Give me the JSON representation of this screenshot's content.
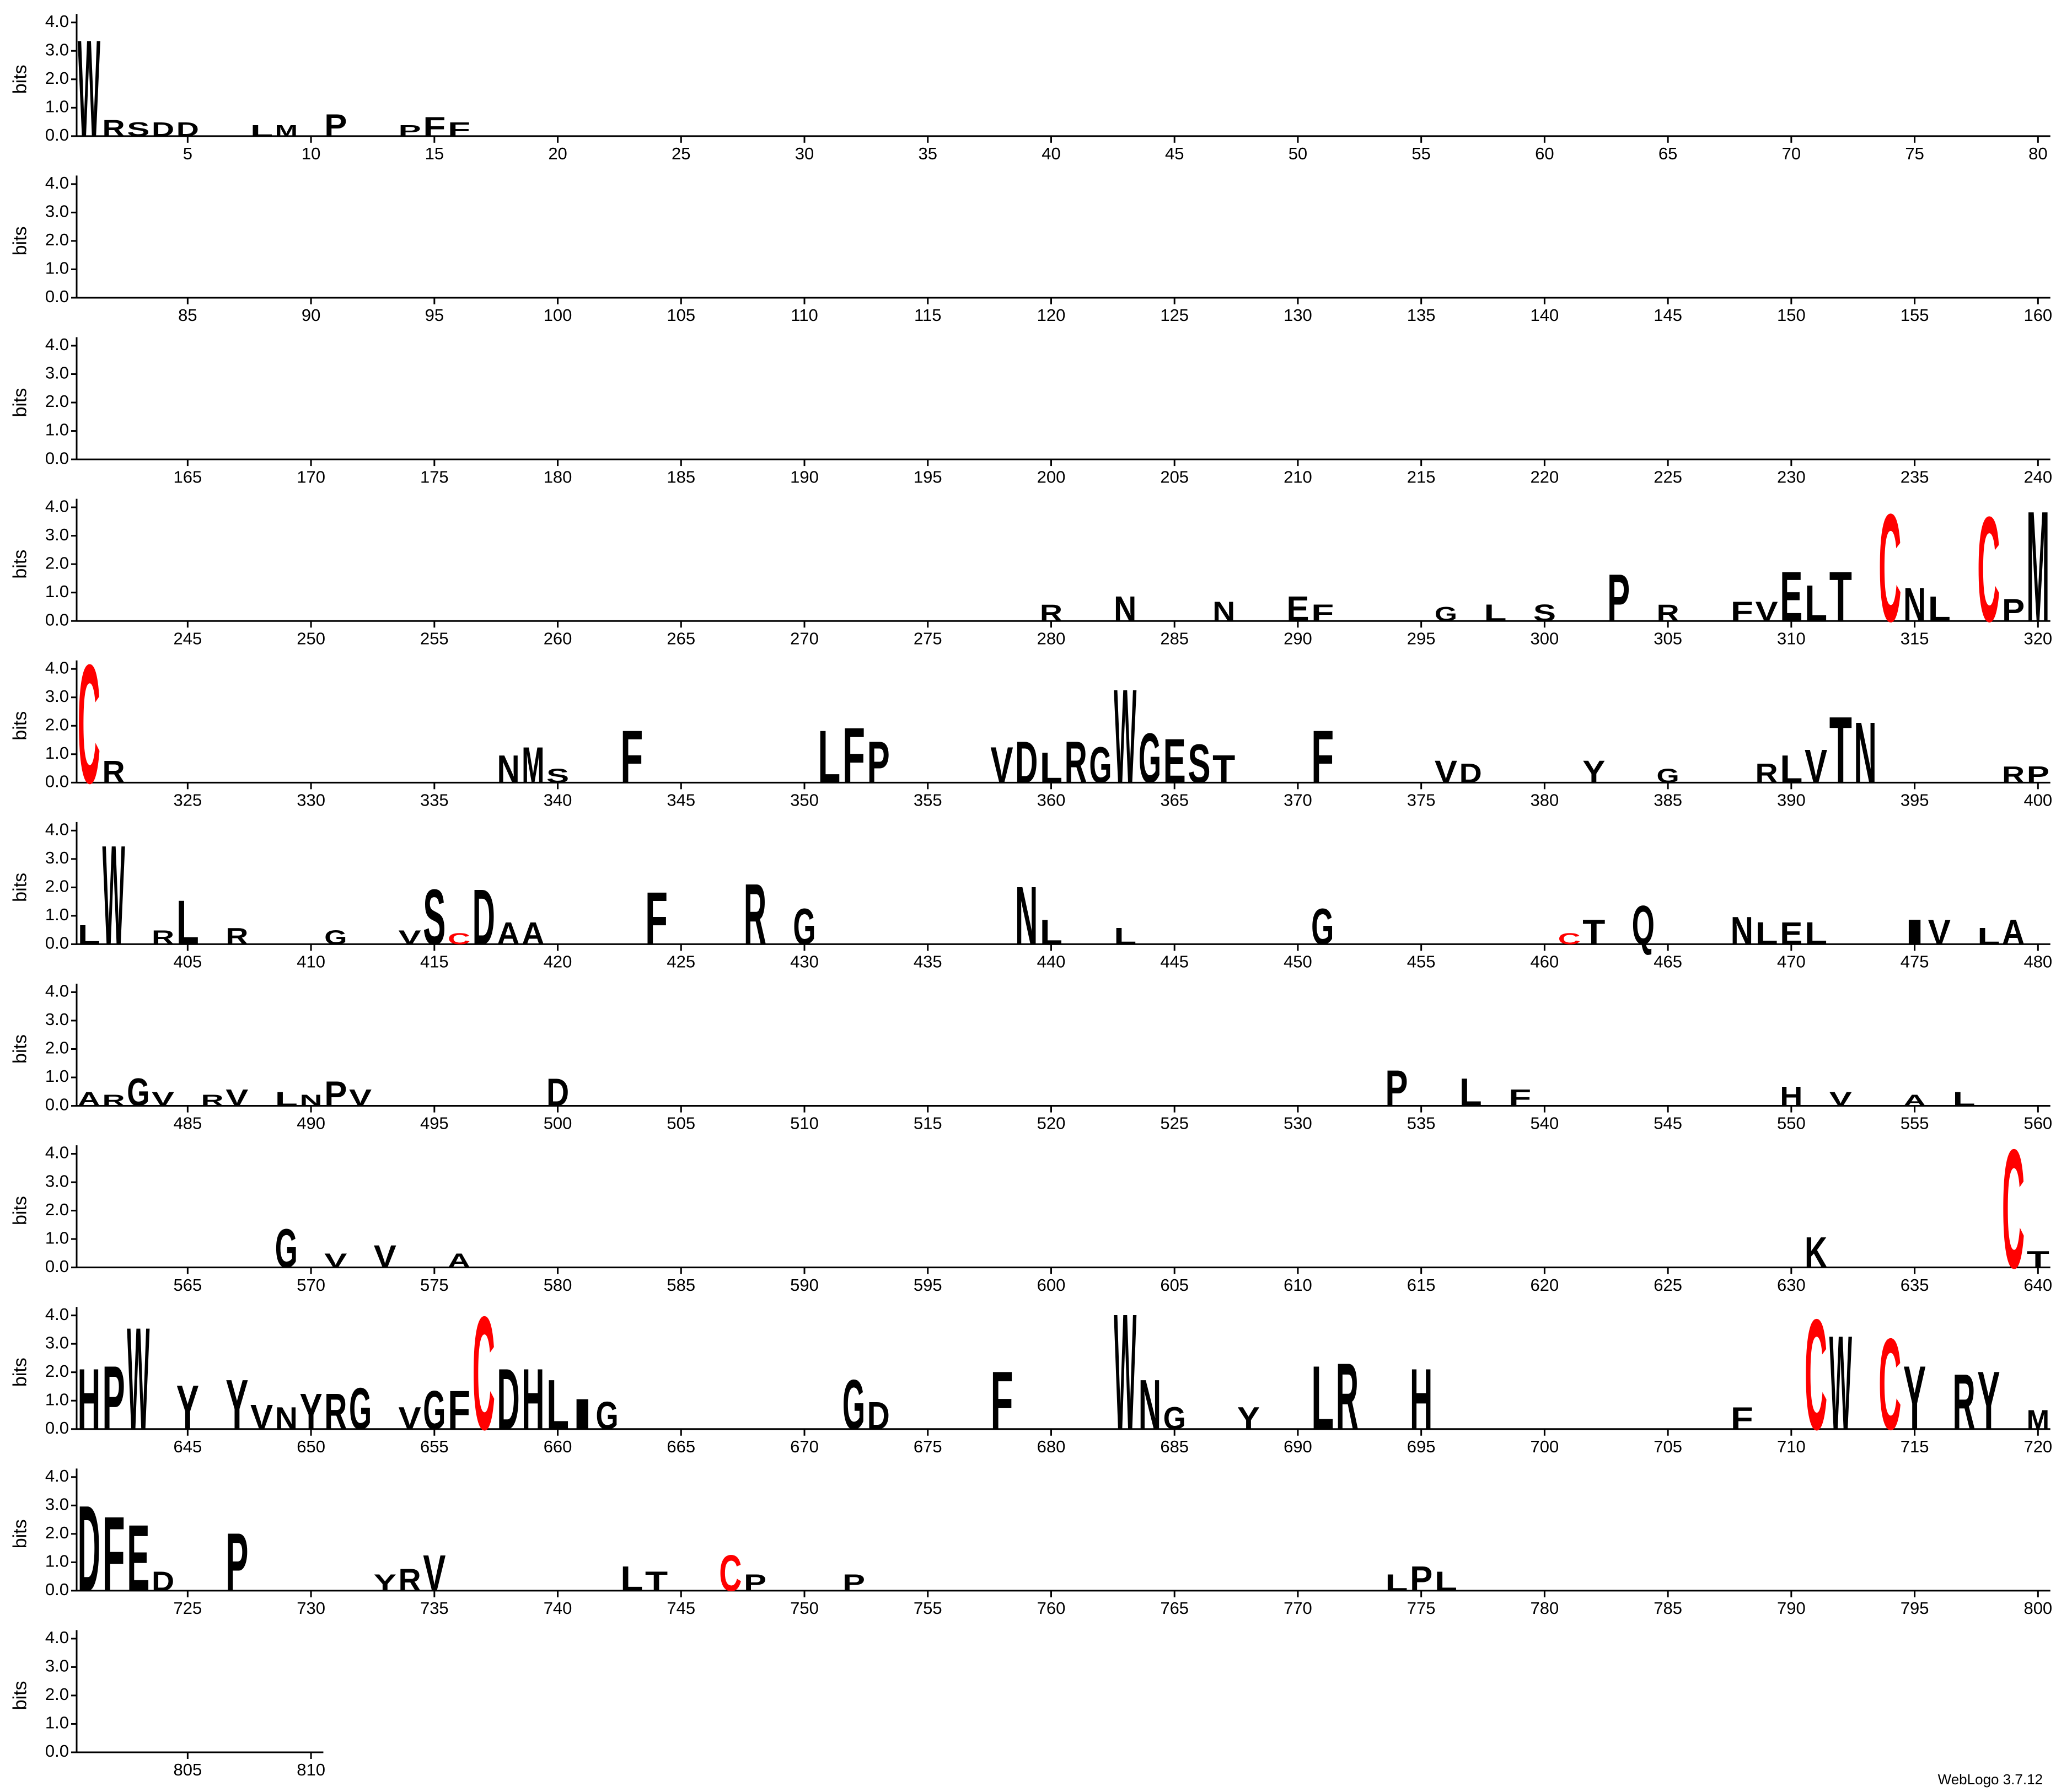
{
  "chart_data": {
    "type": "logo",
    "y_label": "bits",
    "footer": "WebLogo 3.7.12",
    "xlim": [
      1,
      810
    ],
    "ylim": [
      0,
      4.3
    ],
    "yticks": [
      {
        "value": 0,
        "label": "0.0"
      },
      {
        "value": 1,
        "label": "1.0"
      },
      {
        "value": 2,
        "label": "2.0"
      },
      {
        "value": 3,
        "label": "3.0"
      },
      {
        "value": 4,
        "label": "4.0"
      }
    ],
    "xticks": [
      5,
      10,
      15,
      20,
      25,
      30,
      35,
      40,
      45,
      50,
      55,
      60,
      65,
      70,
      75,
      80,
      85,
      90,
      95,
      100,
      105,
      110,
      115,
      120,
      125,
      130,
      135,
      140,
      145,
      150,
      155,
      160,
      165,
      170,
      175,
      180,
      185,
      190,
      195,
      200,
      205,
      210,
      215,
      220,
      225,
      230,
      235,
      240,
      245,
      250,
      255,
      260,
      265,
      270,
      275,
      280,
      285,
      290,
      295,
      300,
      305,
      310,
      315,
      320,
      325,
      330,
      335,
      340,
      345,
      350,
      355,
      360,
      365,
      370,
      375,
      380,
      385,
      390,
      395,
      400,
      405,
      410,
      415,
      420,
      425,
      430,
      435,
      440,
      445,
      450,
      455,
      460,
      465,
      470,
      475,
      480,
      485,
      490,
      495,
      500,
      505,
      510,
      515,
      520,
      525,
      530,
      535,
      540,
      545,
      550,
      555,
      560,
      565,
      570,
      575,
      580,
      585,
      590,
      595,
      600,
      605,
      610,
      615,
      620,
      625,
      630,
      635,
      640,
      645,
      650,
      655,
      660,
      665,
      670,
      675,
      680,
      685,
      690,
      695,
      700,
      705,
      710,
      715,
      720,
      725,
      730,
      735,
      740,
      745,
      750,
      755,
      760,
      765,
      770,
      775,
      780,
      785,
      790,
      795,
      800,
      805,
      810
    ],
    "color": "#000000",
    "letter_colors": {
      "C": "#ff0000"
    },
    "stacks": [
      {
        "x": 1,
        "letter": "W",
        "bits": 3.5
      },
      {
        "x": 2,
        "letter": "R",
        "bits": 0.6
      },
      {
        "x": 3,
        "letter": "S",
        "bits": 0.5
      },
      {
        "x": 4,
        "letter": "D",
        "bits": 0.5
      },
      {
        "x": 5,
        "letter": "D",
        "bits": 0.5
      },
      {
        "x": 8,
        "letter": "L",
        "bits": 0.4
      },
      {
        "x": 9,
        "letter": "M",
        "bits": 0.4
      },
      {
        "x": 11,
        "letter": "P",
        "bits": 0.8
      },
      {
        "x": 14,
        "letter": "P",
        "bits": 0.4
      },
      {
        "x": 15,
        "letter": "F",
        "bits": 0.7
      },
      {
        "x": 16,
        "letter": "F",
        "bits": 0.5
      },
      {
        "x": 280,
        "letter": "R",
        "bits": 0.6
      },
      {
        "x": 283,
        "letter": "N",
        "bits": 0.9
      },
      {
        "x": 287,
        "letter": "N",
        "bits": 0.7
      },
      {
        "x": 290,
        "letter": "E",
        "bits": 0.9
      },
      {
        "x": 291,
        "letter": "F",
        "bits": 0.6
      },
      {
        "x": 296,
        "letter": "G",
        "bits": 0.5
      },
      {
        "x": 298,
        "letter": "L",
        "bits": 0.6
      },
      {
        "x": 300,
        "letter": "S",
        "bits": 0.6
      },
      {
        "x": 303,
        "letter": "P",
        "bits": 1.7
      },
      {
        "x": 305,
        "letter": "R",
        "bits": 0.6
      },
      {
        "x": 308,
        "letter": "F",
        "bits": 0.7
      },
      {
        "x": 309,
        "letter": "V",
        "bits": 0.7
      },
      {
        "x": 310,
        "letter": "E",
        "bits": 1.8
      },
      {
        "x": 311,
        "letter": "L",
        "bits": 1.3
      },
      {
        "x": 312,
        "letter": "T",
        "bits": 1.8
      },
      {
        "x": 314,
        "letter": "C",
        "bits": 3.9
      },
      {
        "x": 315,
        "letter": "N",
        "bits": 1.2
      },
      {
        "x": 316,
        "letter": "L",
        "bits": 0.9
      },
      {
        "x": 318,
        "letter": "C",
        "bits": 3.8
      },
      {
        "x": 319,
        "letter": "P",
        "bits": 0.8
      },
      {
        "x": 320,
        "letter": "M",
        "bits": 4.0
      },
      {
        "x": 321,
        "letter": "C",
        "bits": 4.3
      },
      {
        "x": 322,
        "letter": "R",
        "bits": 0.8
      },
      {
        "x": 338,
        "letter": "N",
        "bits": 1.0
      },
      {
        "x": 339,
        "letter": "M",
        "bits": 1.3
      },
      {
        "x": 340,
        "letter": "S",
        "bits": 0.5
      },
      {
        "x": 343,
        "letter": "F",
        "bits": 1.9
      },
      {
        "x": 351,
        "letter": "L",
        "bits": 1.9
      },
      {
        "x": 352,
        "letter": "F",
        "bits": 2.0
      },
      {
        "x": 353,
        "letter": "P",
        "bits": 1.5
      },
      {
        "x": 358,
        "letter": "V",
        "bits": 1.3
      },
      {
        "x": 359,
        "letter": "D",
        "bits": 1.5
      },
      {
        "x": 360,
        "letter": "L",
        "bits": 1.1
      },
      {
        "x": 361,
        "letter": "R",
        "bits": 1.5
      },
      {
        "x": 362,
        "letter": "G",
        "bits": 1.3
      },
      {
        "x": 363,
        "letter": "W",
        "bits": 3.4
      },
      {
        "x": 364,
        "letter": "G",
        "bits": 1.8
      },
      {
        "x": 365,
        "letter": "E",
        "bits": 1.6
      },
      {
        "x": 366,
        "letter": "S",
        "bits": 1.4
      },
      {
        "x": 367,
        "letter": "T",
        "bits": 1.0
      },
      {
        "x": 371,
        "letter": "F",
        "bits": 1.9
      },
      {
        "x": 376,
        "letter": "V",
        "bits": 0.8
      },
      {
        "x": 377,
        "letter": "D",
        "bits": 0.7
      },
      {
        "x": 382,
        "letter": "Y",
        "bits": 0.8
      },
      {
        "x": 385,
        "letter": "G",
        "bits": 0.5
      },
      {
        "x": 389,
        "letter": "R",
        "bits": 0.7
      },
      {
        "x": 390,
        "letter": "L",
        "bits": 1.0
      },
      {
        "x": 391,
        "letter": "V",
        "bits": 1.2
      },
      {
        "x": 392,
        "letter": "T",
        "bits": 2.4
      },
      {
        "x": 393,
        "letter": "N",
        "bits": 2.2
      },
      {
        "x": 399,
        "letter": "R",
        "bits": 0.6
      },
      {
        "x": 400,
        "letter": "P",
        "bits": 0.6
      },
      {
        "x": 401,
        "letter": "L",
        "bits": 0.7
      },
      {
        "x": 402,
        "letter": "W",
        "bits": 3.6
      },
      {
        "x": 404,
        "letter": "R",
        "bits": 0.5
      },
      {
        "x": 405,
        "letter": "L",
        "bits": 1.6
      },
      {
        "x": 407,
        "letter": "R",
        "bits": 0.6
      },
      {
        "x": 411,
        "letter": "G",
        "bits": 0.5
      },
      {
        "x": 414,
        "letter": "V",
        "bits": 0.5
      },
      {
        "x": 415,
        "letter": "S",
        "bits": 2.0
      },
      {
        "x": 416,
        "letter": "C",
        "bits": 0.4
      },
      {
        "x": 417,
        "letter": "D",
        "bits": 2.0
      },
      {
        "x": 418,
        "letter": "A",
        "bits": 0.8
      },
      {
        "x": 419,
        "letter": "A",
        "bits": 0.8
      },
      {
        "x": 424,
        "letter": "F",
        "bits": 1.9
      },
      {
        "x": 428,
        "letter": "R",
        "bits": 2.2
      },
      {
        "x": 430,
        "letter": "G",
        "bits": 1.3
      },
      {
        "x": 439,
        "letter": "N",
        "bits": 2.1
      },
      {
        "x": 440,
        "letter": "L",
        "bits": 0.9
      },
      {
        "x": 443,
        "letter": "L",
        "bits": 0.6
      },
      {
        "x": 451,
        "letter": "G",
        "bits": 1.3
      },
      {
        "x": 461,
        "letter": "C",
        "bits": 0.4
      },
      {
        "x": 462,
        "letter": "T",
        "bits": 0.9
      },
      {
        "x": 464,
        "letter": "Q",
        "bits": 1.4
      },
      {
        "x": 468,
        "letter": "N",
        "bits": 1.0
      },
      {
        "x": 469,
        "letter": "L",
        "bits": 0.8
      },
      {
        "x": 470,
        "letter": "E",
        "bits": 0.8
      },
      {
        "x": 471,
        "letter": "L",
        "bits": 0.8
      },
      {
        "x": 475,
        "letter": "I",
        "bits": 0.9
      },
      {
        "x": 476,
        "letter": "V",
        "bits": 0.9
      },
      {
        "x": 478,
        "letter": "L",
        "bits": 0.6
      },
      {
        "x": 479,
        "letter": "A",
        "bits": 0.9
      },
      {
        "x": 481,
        "letter": "A",
        "bits": 0.5
      },
      {
        "x": 482,
        "letter": "R",
        "bits": 0.4
      },
      {
        "x": 483,
        "letter": "G",
        "bits": 1.0
      },
      {
        "x": 484,
        "letter": "V",
        "bits": 0.5
      },
      {
        "x": 486,
        "letter": "R",
        "bits": 0.4
      },
      {
        "x": 487,
        "letter": "V",
        "bits": 0.6
      },
      {
        "x": 489,
        "letter": "L",
        "bits": 0.5
      },
      {
        "x": 490,
        "letter": "N",
        "bits": 0.4
      },
      {
        "x": 491,
        "letter": "P",
        "bits": 0.9
      },
      {
        "x": 492,
        "letter": "V",
        "bits": 0.6
      },
      {
        "x": 500,
        "letter": "D",
        "bits": 1.0
      },
      {
        "x": 534,
        "letter": "P",
        "bits": 1.3
      },
      {
        "x": 537,
        "letter": "L",
        "bits": 1.0
      },
      {
        "x": 539,
        "letter": "F",
        "bits": 0.6
      },
      {
        "x": 550,
        "letter": "H",
        "bits": 0.7
      },
      {
        "x": 552,
        "letter": "V",
        "bits": 0.5
      },
      {
        "x": 555,
        "letter": "A",
        "bits": 0.4
      },
      {
        "x": 557,
        "letter": "L",
        "bits": 0.5
      },
      {
        "x": 569,
        "letter": "G",
        "bits": 1.4
      },
      {
        "x": 571,
        "letter": "V",
        "bits": 0.5
      },
      {
        "x": 573,
        "letter": "V",
        "bits": 0.8
      },
      {
        "x": 576,
        "letter": "A",
        "bits": 0.5
      },
      {
        "x": 631,
        "letter": "K",
        "bits": 1.1
      },
      {
        "x": 639,
        "letter": "C",
        "bits": 4.3
      },
      {
        "x": 640,
        "letter": "T",
        "bits": 0.6
      },
      {
        "x": 641,
        "letter": "H",
        "bits": 2.2
      },
      {
        "x": 642,
        "letter": "P",
        "bits": 2.3
      },
      {
        "x": 643,
        "letter": "W",
        "bits": 3.7
      },
      {
        "x": 645,
        "letter": "Y",
        "bits": 1.6
      },
      {
        "x": 647,
        "letter": "Y",
        "bits": 1.8
      },
      {
        "x": 648,
        "letter": "V",
        "bits": 0.9
      },
      {
        "x": 649,
        "letter": "N",
        "bits": 0.8
      },
      {
        "x": 650,
        "letter": "Y",
        "bits": 1.3
      },
      {
        "x": 651,
        "letter": "R",
        "bits": 1.3
      },
      {
        "x": 652,
        "letter": "G",
        "bits": 1.5
      },
      {
        "x": 654,
        "letter": "V",
        "bits": 0.8
      },
      {
        "x": 655,
        "letter": "G",
        "bits": 1.4
      },
      {
        "x": 656,
        "letter": "F",
        "bits": 1.4
      },
      {
        "x": 657,
        "letter": "C",
        "bits": 4.1
      },
      {
        "x": 658,
        "letter": "D",
        "bits": 2.2
      },
      {
        "x": 659,
        "letter": "H",
        "bits": 2.2
      },
      {
        "x": 660,
        "letter": "L",
        "bits": 1.8
      },
      {
        "x": 661,
        "letter": "I",
        "bits": 1.1
      },
      {
        "x": 662,
        "letter": "G",
        "bits": 1.0
      },
      {
        "x": 672,
        "letter": "G",
        "bits": 1.8
      },
      {
        "x": 673,
        "letter": "D",
        "bits": 1.0
      },
      {
        "x": 678,
        "letter": "F",
        "bits": 2.1
      },
      {
        "x": 683,
        "letter": "W",
        "bits": 4.2
      },
      {
        "x": 684,
        "letter": "N",
        "bits": 1.8
      },
      {
        "x": 685,
        "letter": "G",
        "bits": 0.8
      },
      {
        "x": 688,
        "letter": "Y",
        "bits": 0.8
      },
      {
        "x": 691,
        "letter": "L",
        "bits": 2.3
      },
      {
        "x": 692,
        "letter": "R",
        "bits": 2.4
      },
      {
        "x": 695,
        "letter": "H",
        "bits": 2.2
      },
      {
        "x": 708,
        "letter": "F",
        "bits": 0.8
      },
      {
        "x": 711,
        "letter": "C",
        "bits": 4.0
      },
      {
        "x": 712,
        "letter": "W",
        "bits": 3.4
      },
      {
        "x": 714,
        "letter": "C",
        "bits": 3.3
      },
      {
        "x": 715,
        "letter": "Y",
        "bits": 2.3
      },
      {
        "x": 717,
        "letter": "R",
        "bits": 2.0
      },
      {
        "x": 718,
        "letter": "Y",
        "bits": 2.1
      },
      {
        "x": 720,
        "letter": "M",
        "bits": 0.7
      },
      {
        "x": 721,
        "letter": "D",
        "bits": 3.1
      },
      {
        "x": 722,
        "letter": "F",
        "bits": 2.7
      },
      {
        "x": 723,
        "letter": "E",
        "bits": 2.4
      },
      {
        "x": 724,
        "letter": "D",
        "bits": 0.7
      },
      {
        "x": 727,
        "letter": "P",
        "bits": 2.1
      },
      {
        "x": 733,
        "letter": "Y",
        "bits": 0.6
      },
      {
        "x": 734,
        "letter": "R",
        "bits": 0.8
      },
      {
        "x": 735,
        "letter": "V",
        "bits": 1.3
      },
      {
        "x": 743,
        "letter": "L",
        "bits": 0.9
      },
      {
        "x": 744,
        "letter": "T",
        "bits": 0.7
      },
      {
        "x": 747,
        "letter": "C",
        "bits": 1.3
      },
      {
        "x": 748,
        "letter": "P",
        "bits": 0.6
      },
      {
        "x": 752,
        "letter": "P",
        "bits": 0.6
      },
      {
        "x": 774,
        "letter": "L",
        "bits": 0.6
      },
      {
        "x": 775,
        "letter": "P",
        "bits": 0.9
      },
      {
        "x": 776,
        "letter": "L",
        "bits": 0.7
      }
    ]
  }
}
